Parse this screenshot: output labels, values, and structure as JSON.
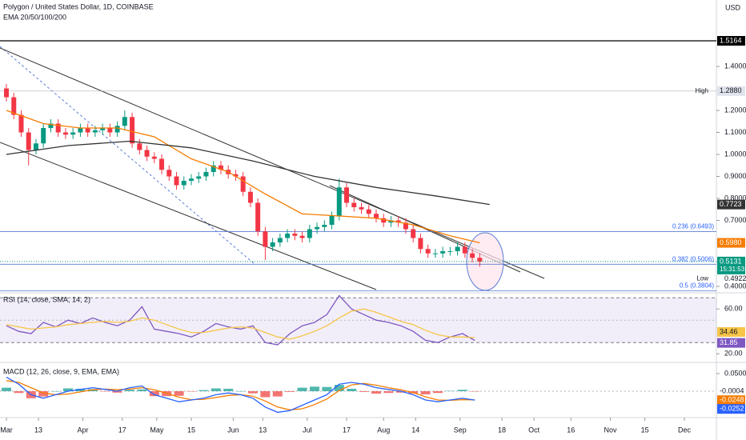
{
  "chart_data": [
    {
      "type": "candlestick",
      "title": "Polygon / United States Dollar, 1D, COINBASE",
      "subtitle": "EMA 20/50/100/200",
      "currency": "USD",
      "x": [
        0,
        3,
        6,
        9,
        12,
        15,
        18,
        21,
        24,
        27,
        30,
        33,
        36,
        39,
        42,
        45,
        48,
        51,
        54,
        57,
        60,
        63,
        66,
        69,
        72,
        75,
        78,
        81,
        84,
        87,
        90,
        93,
        96,
        99,
        102,
        105,
        108,
        111,
        114,
        117,
        120,
        123,
        126,
        129,
        132,
        135,
        138,
        141,
        144,
        147,
        150,
        153,
        156,
        159,
        162,
        165,
        168,
        171,
        174,
        177,
        180,
        183,
        186,
        189,
        192
      ],
      "open": [
        1.3,
        1.26,
        1.18,
        1.1,
        1.02,
        1.05,
        1.12,
        1.14,
        1.1,
        1.09,
        1.1,
        1.12,
        1.1,
        1.11,
        1.12,
        1.1,
        1.13,
        1.17,
        1.05,
        1.02,
        0.99,
        0.98,
        0.93,
        0.9,
        0.86,
        0.88,
        0.89,
        0.9,
        0.92,
        0.95,
        0.93,
        0.91,
        0.9,
        0.83,
        0.78,
        0.65,
        0.58,
        0.6,
        0.62,
        0.64,
        0.63,
        0.62,
        0.66,
        0.67,
        0.68,
        0.72,
        0.85,
        0.78,
        0.76,
        0.75,
        0.73,
        0.71,
        0.69,
        0.7,
        0.69,
        0.66,
        0.62,
        0.57,
        0.55,
        0.55,
        0.56,
        0.56,
        0.58,
        0.55,
        0.53
      ],
      "high": [
        1.32,
        1.28,
        1.2,
        1.12,
        1.07,
        1.14,
        1.16,
        1.16,
        1.12,
        1.12,
        1.14,
        1.14,
        1.13,
        1.14,
        1.14,
        1.15,
        1.2,
        1.19,
        1.07,
        1.04,
        1.01,
        1.0,
        0.95,
        0.92,
        0.9,
        0.91,
        0.92,
        0.94,
        0.97,
        0.97,
        0.95,
        0.93,
        0.92,
        0.85,
        0.8,
        0.67,
        0.62,
        0.64,
        0.66,
        0.66,
        0.65,
        0.68,
        0.69,
        0.7,
        0.74,
        0.89,
        0.87,
        0.8,
        0.78,
        0.77,
        0.75,
        0.73,
        0.72,
        0.72,
        0.71,
        0.68,
        0.64,
        0.59,
        0.57,
        0.58,
        0.58,
        0.6,
        0.6,
        0.57,
        0.55
      ],
      "low": [
        1.24,
        1.16,
        1.08,
        0.95,
        1.0,
        1.03,
        1.1,
        1.08,
        1.07,
        1.07,
        1.08,
        1.08,
        1.08,
        1.09,
        1.08,
        1.08,
        1.11,
        1.03,
        1.0,
        0.97,
        0.96,
        0.91,
        0.88,
        0.84,
        0.84,
        0.86,
        0.87,
        0.88,
        0.9,
        0.91,
        0.89,
        0.88,
        0.81,
        0.76,
        0.63,
        0.52,
        0.56,
        0.58,
        0.6,
        0.61,
        0.6,
        0.6,
        0.64,
        0.65,
        0.66,
        0.7,
        0.76,
        0.74,
        0.73,
        0.71,
        0.69,
        0.67,
        0.67,
        0.67,
        0.64,
        0.6,
        0.55,
        0.53,
        0.53,
        0.53,
        0.54,
        0.54,
        0.53,
        0.51,
        0.49
      ],
      "close": [
        1.26,
        1.18,
        1.1,
        1.02,
        1.05,
        1.12,
        1.14,
        1.1,
        1.09,
        1.1,
        1.12,
        1.1,
        1.11,
        1.12,
        1.1,
        1.13,
        1.17,
        1.05,
        1.02,
        0.99,
        0.98,
        0.93,
        0.9,
        0.86,
        0.88,
        0.89,
        0.9,
        0.92,
        0.95,
        0.93,
        0.91,
        0.9,
        0.83,
        0.78,
        0.65,
        0.58,
        0.6,
        0.62,
        0.64,
        0.63,
        0.62,
        0.66,
        0.67,
        0.68,
        0.72,
        0.85,
        0.78,
        0.76,
        0.75,
        0.73,
        0.71,
        0.69,
        0.7,
        0.69,
        0.66,
        0.62,
        0.57,
        0.55,
        0.55,
        0.56,
        0.56,
        0.58,
        0.55,
        0.53,
        0.5131
      ],
      "last_label": "0.5131",
      "countdown": "15:31:53",
      "up_color": "#089981",
      "down_color": "#f23645",
      "lines": [
        {
          "color": "#f57c00",
          "x": [
            0,
            15,
            30,
            45,
            60,
            75,
            90,
            105,
            120,
            135,
            150,
            165,
            180,
            192
          ],
          "values": [
            1.2,
            1.14,
            1.12,
            1.12,
            1.08,
            0.98,
            0.92,
            0.82,
            0.73,
            0.72,
            0.71,
            0.68,
            0.63,
            0.598
          ],
          "value_label": "0.5980"
        },
        {
          "color": "#333333",
          "x": [
            0,
            25,
            50,
            75,
            100,
            125,
            150,
            175,
            196
          ],
          "values": [
            1.0,
            1.04,
            1.06,
            1.03,
            0.97,
            0.9,
            0.85,
            0.81,
            0.7723
          ],
          "value_label": "0.7723"
        }
      ],
      "levels": [
        {
          "value": 1.5164,
          "label": "1.5164",
          "color": "#000000"
        },
        {
          "value": 1.288,
          "label": "1.2880",
          "tag": "High",
          "color": "#b2b5be"
        },
        {
          "value": 0.4922,
          "label": "0.4922",
          "tag": "Low",
          "color": "#b2b5be"
        }
      ],
      "fib": [
        {
          "value": 0.6493,
          "label": "0.236 (0.6493)"
        },
        {
          "value": 0.5006,
          "label": "0.382 (0.5006)"
        },
        {
          "value": 0.3804,
          "label": "0.5 (0.3804)"
        }
      ],
      "xlim": [
        -2.6,
        288
      ],
      "xticks": [
        {
          "value": 0,
          "label": "Mar"
        },
        13,
        {
          "value": 31,
          "label": "Apr"
        },
        {
          "value": 47,
          "label": "17"
        },
        {
          "value": 61,
          "label": "May"
        },
        {
          "value": 75,
          "label": "15"
        },
        {
          "value": 92,
          "label": "Jun"
        },
        {
          "value": 104,
          "label": "13"
        },
        {
          "value": 122,
          "label": "Jul"
        },
        {
          "value": 138,
          "label": "17"
        },
        {
          "value": 153,
          "label": "Aug"
        },
        {
          "value": 166,
          "label": "14"
        },
        {
          "value": 184,
          "label": "Sep"
        },
        {
          "value": 201,
          "label": "18"
        },
        {
          "value": 214,
          "label": "Oct"
        },
        {
          "value": 229,
          "label": "16"
        },
        {
          "value": 245,
          "label": "Nov"
        },
        {
          "value": 259,
          "label": "15"
        },
        {
          "value": 275,
          "label": "Dec"
        }
      ],
      "ylim": [
        0.3745,
        1.702
      ],
      "yticks": [
        {
          "value": 0.4,
          "label": "0.4000"
        },
        {
          "value": 0.7,
          "label": "0.7000"
        },
        {
          "value": 0.8,
          "label": "0.8000"
        },
        {
          "value": 0.9,
          "label": "0.9000"
        },
        {
          "value": 1.0,
          "label": "1.0000"
        },
        {
          "value": 1.1,
          "label": "1.1000"
        },
        {
          "value": 1.2,
          "label": "1.2000"
        },
        {
          "value": 1.4,
          "label": "1.4000"
        }
      ]
    },
    {
      "type": "line",
      "title": "RSI (14, close, SMA, 14, 2)",
      "x": [
        0,
        5,
        10,
        15,
        20,
        25,
        30,
        35,
        40,
        45,
        50,
        55,
        60,
        65,
        70,
        75,
        80,
        85,
        90,
        95,
        100,
        105,
        110,
        115,
        120,
        125,
        130,
        135,
        140,
        145,
        150,
        155,
        160,
        165,
        170,
        175,
        180,
        185,
        190
      ],
      "series": [
        {
          "color": "#7e57c2",
          "values": [
            45,
            40,
            38,
            48,
            44,
            50,
            47,
            52,
            48,
            45,
            50,
            62,
            42,
            40,
            38,
            35,
            40,
            47,
            44,
            42,
            45,
            30,
            28,
            38,
            45,
            48,
            55,
            72,
            60,
            55,
            50,
            48,
            45,
            40,
            32,
            30,
            35,
            38,
            31.85
          ],
          "value_label": "31.85"
        },
        {
          "color": "#f7c548",
          "values": [
            46,
            44,
            42,
            43,
            44,
            46,
            47,
            48,
            49,
            48,
            49,
            52,
            50,
            46,
            42,
            39,
            39,
            41,
            43,
            44,
            43,
            39,
            35,
            33,
            36,
            40,
            45,
            52,
            58,
            60,
            57,
            53,
            49,
            46,
            41,
            37,
            35,
            35,
            34.46
          ],
          "value_label": "34.46"
        }
      ],
      "bands": [
        30,
        70
      ],
      "midline": 50,
      "ylim": [
        13,
        73
      ],
      "yticks": [
        {
          "value": 60,
          "label": "60.00"
        },
        {
          "value": 20,
          "label": "20.00"
        }
      ]
    },
    {
      "type": "macd",
      "title": "MACD (12, 26, close, 9, EMA, EMA)",
      "x": [
        0,
        5,
        10,
        15,
        20,
        25,
        30,
        35,
        40,
        45,
        50,
        55,
        60,
        65,
        70,
        75,
        80,
        85,
        90,
        95,
        100,
        105,
        110,
        115,
        120,
        125,
        130,
        135,
        140,
        145,
        150,
        155,
        160,
        165,
        170,
        175,
        180,
        185,
        190
      ],
      "histogram": {
        "values": [
          0.01,
          -0.005,
          -0.02,
          -0.015,
          0,
          0.008,
          0.007,
          0.006,
          -0.001,
          -0.004,
          0.004,
          0.005,
          -0.014,
          -0.014,
          -0.013,
          -0.001,
          0.003,
          0.008,
          0.007,
          0,
          -0.006,
          -0.017,
          -0.015,
          -0.002,
          0.01,
          0.013,
          0.012,
          0.018,
          0.007,
          -0.002,
          -0.007,
          -0.005,
          -0.004,
          -0.006,
          -0.009,
          -0.005,
          0.001,
          0.004,
          -0.0004
        ],
        "value_label": "-0.0004",
        "up_color": "#26a69a",
        "down_color": "#ef5350"
      },
      "series": [
        {
          "color": "#f57c00",
          "values": [
            0.03,
            0.025,
            0.01,
            -0.005,
            -0.01,
            -0.008,
            -0.002,
            0.004,
            0.006,
            0.004,
            0.006,
            0.01,
            0.004,
            -0.006,
            -0.017,
            -0.024,
            -0.023,
            -0.018,
            -0.012,
            -0.01,
            -0.014,
            -0.028,
            -0.045,
            -0.053,
            -0.05,
            -0.038,
            -0.022,
            0.002,
            0.018,
            0.022,
            0.017,
            0.01,
            0.004,
            -0.004,
            -0.016,
            -0.025,
            -0.026,
            -0.024,
            -0.0248
          ],
          "value_label": "-0.0248"
        },
        {
          "color": "#2962ff",
          "values": [
            0.04,
            0.02,
            -0.01,
            -0.02,
            -0.01,
            0,
            0.005,
            0.01,
            0.005,
            0,
            0.01,
            0.015,
            -0.01,
            -0.02,
            -0.03,
            -0.025,
            -0.02,
            -0.01,
            -0.005,
            -0.01,
            -0.02,
            -0.045,
            -0.06,
            -0.055,
            -0.04,
            -0.025,
            -0.01,
            0.02,
            0.025,
            0.02,
            0.01,
            0.005,
            0,
            -0.01,
            -0.025,
            -0.03,
            -0.025,
            -0.02,
            -0.0252
          ],
          "value_label": "-0.0252"
        }
      ],
      "ylim": [
        -0.075,
        0.0773
      ],
      "yticks": [
        {
          "value": 0.05,
          "label": "0.0500"
        }
      ]
    }
  ]
}
